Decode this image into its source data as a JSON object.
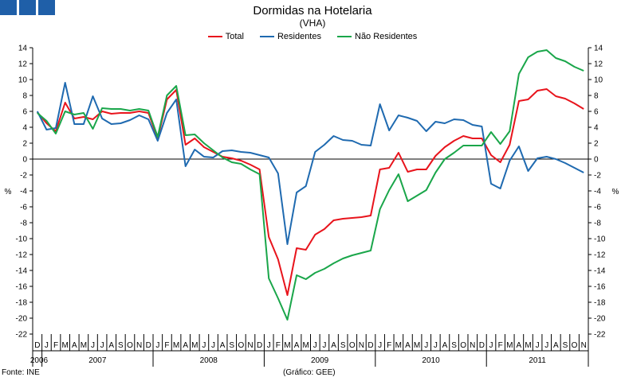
{
  "header": {
    "title": "Dormidas na Hotelaria",
    "subtitle": "(VHA)"
  },
  "footer": {
    "source": "Fonte: INE",
    "credit": "(Gráfico: GEE)"
  },
  "colors": {
    "logo": "#1f5fa8",
    "total": "#e8141c",
    "residentes": "#1f6ab0",
    "nao_residentes": "#1aa64a"
  },
  "chart_data": {
    "type": "line",
    "title": "Dormidas na Hotelaria",
    "subtitle": "(VHA)",
    "ylabel_left": "%",
    "ylabel_right": "%",
    "ylim": [
      -22,
      14
    ],
    "yticks": [
      14,
      12,
      10,
      8,
      6,
      4,
      2,
      0,
      -2,
      -4,
      -6,
      -8,
      -10,
      -12,
      -14,
      -16,
      -18,
      -20,
      -22
    ],
    "grid": false,
    "legend_position": "top-center",
    "month_labels": [
      "D",
      "J",
      "F",
      "M",
      "A",
      "M",
      "J",
      "J",
      "A",
      "S",
      "O",
      "N",
      "D",
      "J",
      "F",
      "M",
      "A",
      "M",
      "J",
      "J",
      "A",
      "S",
      "O",
      "N",
      "D",
      "J",
      "F",
      "M",
      "A",
      "M",
      "J",
      "J",
      "A",
      "S",
      "O",
      "N",
      "D",
      "J",
      "F",
      "M",
      "A",
      "M",
      "J",
      "J",
      "A",
      "S",
      "O",
      "N",
      "D",
      "J",
      "F",
      "M",
      "A",
      "M",
      "J",
      "J",
      "A",
      "S",
      "O",
      "N"
    ],
    "years": [
      {
        "label": "2006",
        "start": 0,
        "end": 0
      },
      {
        "label": "2007",
        "start": 1,
        "end": 12
      },
      {
        "label": "2008",
        "start": 13,
        "end": 24
      },
      {
        "label": "2009",
        "start": 25,
        "end": 36
      },
      {
        "label": "2010",
        "start": 37,
        "end": 48
      },
      {
        "label": "2011",
        "start": 49,
        "end": 59
      }
    ],
    "series": [
      {
        "name": "Total",
        "color": "#e8141c",
        "values": [
          5.9,
          4.5,
          3.5,
          7.1,
          5.1,
          5.3,
          5.0,
          6.0,
          5.7,
          5.8,
          5.8,
          6.0,
          5.8,
          2.6,
          7.5,
          8.7,
          1.8,
          2.6,
          1.5,
          0.9,
          0.3,
          0.1,
          -0.2,
          -0.7,
          -1.3,
          -9.8,
          -12.6,
          -17.1,
          -11.2,
          -11.4,
          -9.5,
          -8.8,
          -7.7,
          -7.5,
          -7.4,
          -7.3,
          -7.1,
          -1.3,
          -1.1,
          0.8,
          -1.6,
          -1.3,
          -1.3,
          0.4,
          1.5,
          2.3,
          2.9,
          2.6,
          2.6,
          0.5,
          -0.4,
          1.8,
          7.3,
          7.5,
          8.6,
          8.8,
          7.9,
          7.6,
          7.0,
          6.3
        ]
      },
      {
        "name": "Residentes",
        "color": "#1f6ab0",
        "values": [
          6.0,
          3.7,
          3.9,
          9.6,
          4.4,
          4.4,
          7.9,
          5.1,
          4.4,
          4.5,
          4.9,
          5.5,
          5.0,
          2.3,
          5.8,
          7.5,
          -0.9,
          1.2,
          0.3,
          0.2,
          1.0,
          1.1,
          0.9,
          0.8,
          0.5,
          0.2,
          -1.8,
          -10.7,
          -4.2,
          -3.4,
          0.9,
          1.8,
          2.9,
          2.4,
          2.3,
          1.8,
          1.7,
          6.9,
          3.6,
          5.5,
          5.2,
          4.8,
          3.5,
          4.7,
          4.5,
          5.0,
          4.9,
          4.3,
          4.1,
          -3.1,
          -3.7,
          -0.2,
          1.6,
          -1.5,
          0.1,
          0.3,
          0.0,
          -0.5,
          -1.1,
          -1.7
        ]
      },
      {
        "name": "Não Residentes",
        "color": "#1aa64a",
        "values": [
          5.8,
          4.8,
          3.2,
          6.0,
          5.6,
          5.8,
          3.8,
          6.4,
          6.3,
          6.3,
          6.1,
          6.3,
          6.1,
          2.8,
          8.0,
          9.2,
          3.0,
          3.1,
          2.0,
          1.1,
          0.2,
          -0.4,
          -0.6,
          -1.3,
          -1.9,
          -15.0,
          -17.5,
          -20.2,
          -14.6,
          -15.1,
          -14.3,
          -13.8,
          -13.1,
          -12.5,
          -12.1,
          -11.8,
          -11.5,
          -6.3,
          -3.9,
          -1.9,
          -5.3,
          -4.6,
          -3.9,
          -1.7,
          0.0,
          0.8,
          1.7,
          1.7,
          1.7,
          3.4,
          1.9,
          3.5,
          10.7,
          12.8,
          13.5,
          13.7,
          12.7,
          12.3,
          11.6,
          11.1
        ]
      }
    ]
  }
}
